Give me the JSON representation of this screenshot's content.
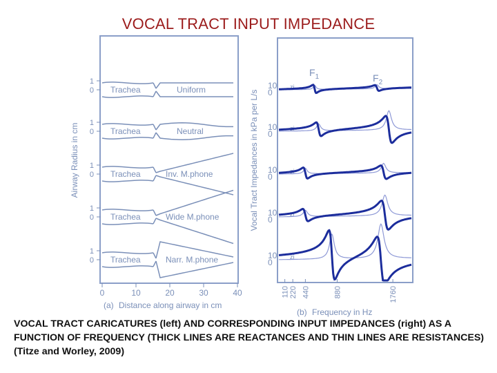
{
  "slide": {
    "title": "VOCAL TRACT INPUT IMPEDANCE",
    "caption": "VOCAL TRACT CARICATURES (left) AND CORRESPONDING INPUT IMPEDANCES (right) AS A FUNCTION OF FREQUENCY  (THICK LINES ARE REACTANCES AND THIN LINES ARE RESISTANCES) (Titze and Worley, 2009)"
  },
  "chart_data": [
    {
      "type": "diagram",
      "panel": "(a)",
      "xlabel": "Distance along airway in cm",
      "ylabel": "Airway Radius in cm",
      "x_ticks": [
        "0",
        "10",
        "20",
        "30",
        "40"
      ],
      "y_ticks": [
        "1",
        "0"
      ],
      "rows": [
        {
          "segment": "Trachea",
          "shape": "Uniform"
        },
        {
          "segment": "Trachea",
          "shape": "Neutral"
        },
        {
          "segment": "Trachea",
          "shape": "Inv. M.phone"
        },
        {
          "segment": "Trachea",
          "shape": "Wide M.phone"
        },
        {
          "segment": "Trachea",
          "shape": "Narr. M.phone"
        }
      ]
    },
    {
      "type": "line",
      "panel": "(b)",
      "xlabel": "Frequency in Hz",
      "ylabel": "Vocal Tract Impedances in kPa per L/s",
      "x_ticks": [
        "110",
        "220",
        "440",
        "880",
        "1760"
      ],
      "y_ticks": [
        "10",
        "0"
      ],
      "formant_labels": [
        {
          "main": "F",
          "sub": "1"
        },
        {
          "main": "F",
          "sub": "2"
        }
      ],
      "z_label": "z"
    }
  ]
}
